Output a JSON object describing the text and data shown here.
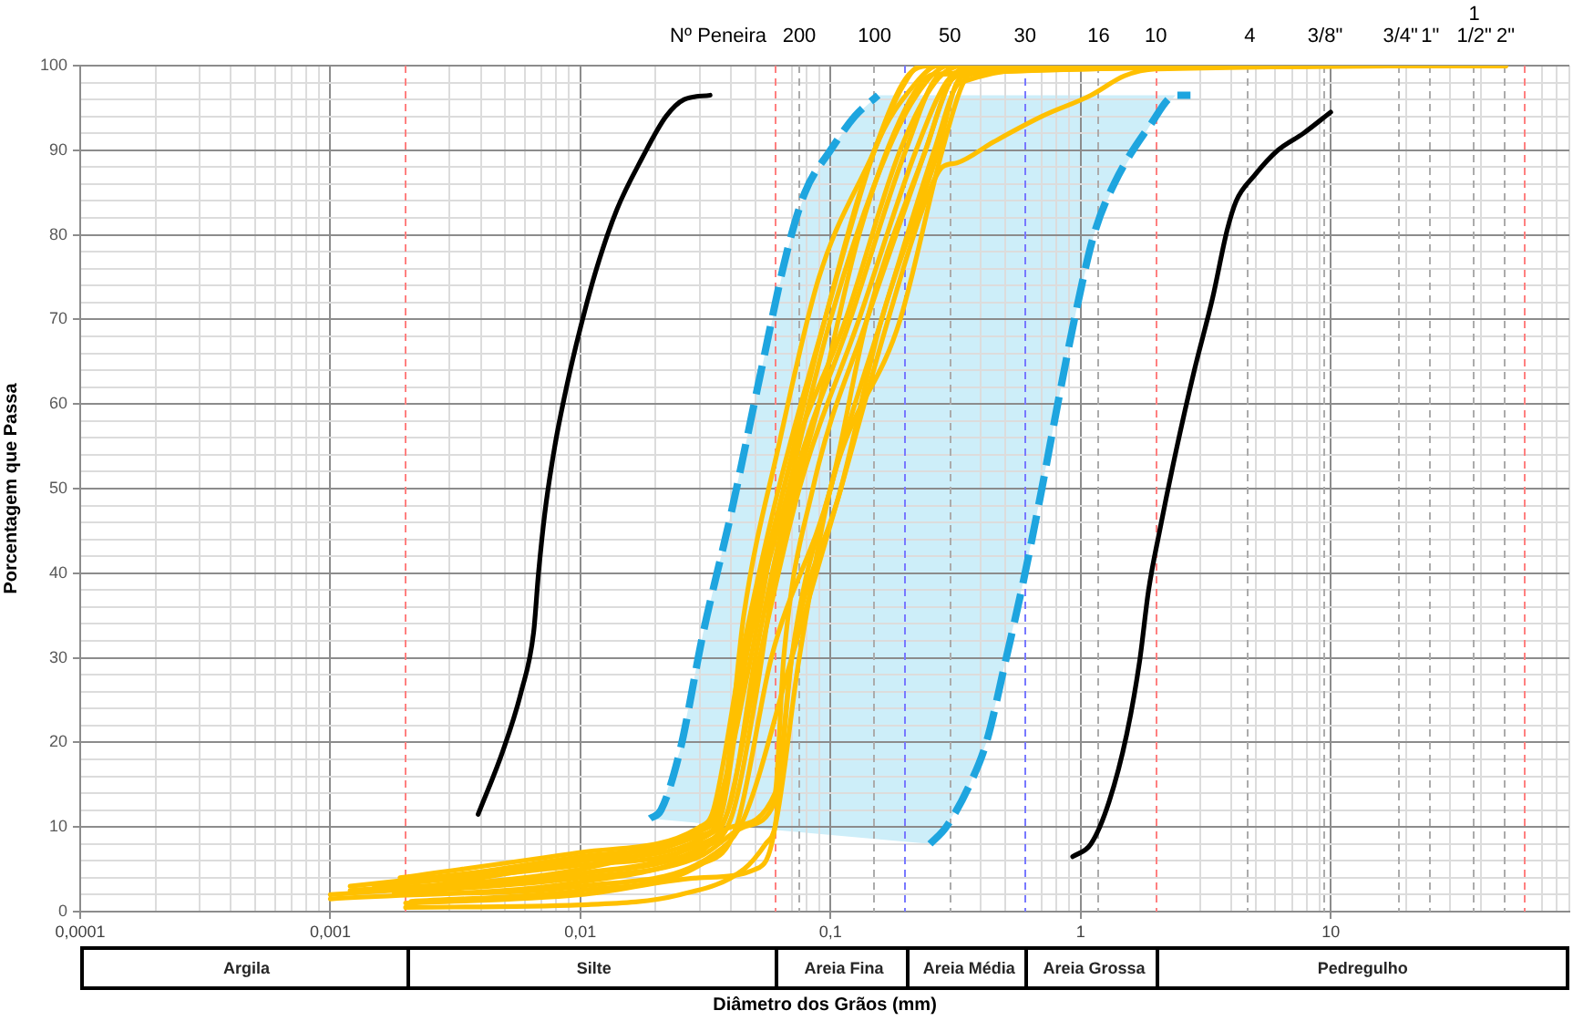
{
  "chart_data": {
    "type": "line",
    "xlabel": "Diâmetro dos Grãos (mm)",
    "ylabel": "Porcentagem que Passa",
    "log": "x",
    "grid": true,
    "xlim": [
      0.0001,
      90
    ],
    "ylim": [
      0,
      100
    ],
    "xticks": [
      {
        "value": 0.0001,
        "label": "0,0001"
      },
      {
        "value": 0.0002,
        "label": null
      },
      {
        "value": 0.0003,
        "label": null
      },
      {
        "value": 0.0004,
        "label": null
      },
      {
        "value": 0.0005,
        "label": null
      },
      {
        "value": 0.0006,
        "label": null
      },
      {
        "value": 0.0007,
        "label": null
      },
      {
        "value": 0.0008,
        "label": null
      },
      {
        "value": 0.0009,
        "label": null
      },
      {
        "value": 0.001,
        "label": "0,001"
      },
      {
        "value": 0.003,
        "label": null
      },
      {
        "value": 0.004,
        "label": null
      },
      {
        "value": 0.005,
        "label": null
      },
      {
        "value": 0.006,
        "label": null
      },
      {
        "value": 0.007,
        "label": null
      },
      {
        "value": 0.008,
        "label": null
      },
      {
        "value": 0.009,
        "label": null
      },
      {
        "value": 0.01,
        "label": "0,01"
      },
      {
        "value": 0.02,
        "label": null
      },
      {
        "value": 0.03,
        "label": null
      },
      {
        "value": 0.04,
        "label": null
      },
      {
        "value": 0.05,
        "label": null
      },
      {
        "value": 0.07,
        "label": null
      },
      {
        "value": 0.08,
        "label": null
      },
      {
        "value": 0.09,
        "label": null
      },
      {
        "value": 0.1,
        "label": "0,1"
      },
      {
        "value": 0.4,
        "label": null
      },
      {
        "value": 0.5,
        "label": null
      },
      {
        "value": 0.7,
        "label": null
      },
      {
        "value": 0.8,
        "label": null
      },
      {
        "value": 0.9,
        "label": null
      },
      1,
      {
        "value": 3,
        "label": null
      },
      {
        "value": 4,
        "label": null
      },
      {
        "value": 5,
        "label": null
      },
      {
        "value": 6,
        "label": null
      },
      {
        "value": 7,
        "label": null
      },
      {
        "value": 8,
        "label": null
      },
      {
        "value": 9,
        "label": null
      },
      10,
      {
        "value": 20,
        "label": null
      },
      {
        "value": 30,
        "label": null
      },
      {
        "value": 40,
        "label": null
      },
      {
        "value": 70,
        "label": null
      },
      {
        "value": 80,
        "label": null
      },
      {
        "value": 90,
        "label": null
      }
    ],
    "yticks": [
      0,
      {
        "value": 2,
        "label": null
      },
      {
        "value": 4,
        "label": null
      },
      {
        "value": 6,
        "label": null
      },
      {
        "value": 8,
        "label": null
      },
      10,
      {
        "value": 12,
        "label": null
      },
      {
        "value": 14,
        "label": null
      },
      {
        "value": 16,
        "label": null
      },
      {
        "value": 18,
        "label": null
      },
      20,
      {
        "value": 22,
        "label": null
      },
      {
        "value": 24,
        "label": null
      },
      {
        "value": 26,
        "label": null
      },
      {
        "value": 28,
        "label": null
      },
      30,
      {
        "value": 32,
        "label": null
      },
      {
        "value": 34,
        "label": null
      },
      {
        "value": 36,
        "label": null
      },
      {
        "value": 38,
        "label": null
      },
      40,
      {
        "value": 42,
        "label": null
      },
      {
        "value": 44,
        "label": null
      },
      {
        "value": 46,
        "label": null
      },
      {
        "value": 48,
        "label": null
      },
      50,
      {
        "value": 52,
        "label": null
      },
      {
        "value": 54,
        "label": null
      },
      {
        "value": 56,
        "label": null
      },
      {
        "value": 58,
        "label": null
      },
      60,
      {
        "value": 62,
        "label": null
      },
      {
        "value": 64,
        "label": null
      },
      {
        "value": 66,
        "label": null
      },
      {
        "value": 68,
        "label": null
      },
      70,
      {
        "value": 72,
        "label": null
      },
      {
        "value": 74,
        "label": null
      },
      {
        "value": 76,
        "label": null
      },
      {
        "value": 78,
        "label": null
      },
      80,
      {
        "value": 82,
        "label": null
      },
      {
        "value": 84,
        "label": null
      },
      {
        "value": 86,
        "label": null
      },
      {
        "value": 88,
        "label": null
      },
      90,
      {
        "value": 92,
        "label": null
      },
      {
        "value": 94,
        "label": null
      },
      {
        "value": 96,
        "label": null
      },
      {
        "value": 98,
        "label": null
      },
      100
    ],
    "ref_lines": [
      {
        "axis": "x",
        "value": 0.075,
        "color": "#ababab",
        "line_style": "dashed"
      },
      {
        "axis": "x",
        "value": 0.15,
        "color": "#ababab",
        "line_style": "dashed"
      },
      {
        "axis": "x",
        "value": 0.3,
        "color": "#ababab",
        "line_style": "dashed"
      },
      {
        "axis": "x",
        "value": 1.18,
        "color": "#ababab",
        "line_style": "dashed"
      },
      {
        "axis": "x",
        "value": 4.75,
        "color": "#ababab",
        "line_style": "dashed"
      },
      {
        "axis": "x",
        "value": 9.5,
        "color": "#ababab",
        "line_style": "dashed"
      },
      {
        "axis": "x",
        "value": 19,
        "color": "#ababab",
        "line_style": "dashed"
      },
      {
        "axis": "x",
        "value": 25,
        "color": "#ababab",
        "line_style": "dashed"
      },
      {
        "axis": "x",
        "value": 37.5,
        "color": "#ababab",
        "line_style": "dashed"
      },
      {
        "axis": "x",
        "value": 50,
        "color": "#ababab",
        "line_style": "dashed"
      },
      {
        "axis": "x",
        "value": 0.002,
        "color": "#ff8080",
        "line_style": "dashed"
      },
      {
        "axis": "x",
        "value": 0.06,
        "color": "#ff8080",
        "line_style": "dashed"
      },
      {
        "axis": "x",
        "value": 0.2,
        "color": "#7878ff",
        "line_style": "dashed"
      },
      {
        "axis": "x",
        "value": 0.6,
        "color": "#7878ff",
        "line_style": "dashed"
      },
      {
        "axis": "x",
        "value": 2,
        "color": "#ff8080",
        "line_style": "dashed"
      },
      {
        "axis": "x",
        "value": 60,
        "color": "#ff8080",
        "line_style": "dashed"
      }
    ],
    "annotations": [
      "Nº Peneira",
      "200",
      "100",
      "50",
      "30",
      "16",
      "10",
      "4",
      "3/8\"",
      "3/4\"",
      "1\"",
      "1 1/2\"",
      "2\"",
      "Argila",
      "Silte",
      "Areia Fina",
      "Areia Média",
      "Areia Grossa",
      "Pedregulho"
    ],
    "series": [
      {
        "color": "#ffc000",
        "x": [
          0.001,
          0.01,
          0.03,
          0.037,
          0.046,
          0.068,
          0.1,
          0.17,
          0.24,
          0.3,
          50
        ],
        "values": [
          2,
          4.5,
          8.5,
          12,
          30,
          50,
          70,
          90,
          98,
          100,
          100
        ]
      },
      {
        "color": "#ffc000",
        "x": [
          0.0012,
          0.01,
          0.032,
          0.04,
          0.05,
          0.07,
          0.12,
          0.2,
          0.28,
          50
        ],
        "values": [
          3,
          6,
          9,
          13,
          30,
          50,
          70,
          90,
          99,
          100
        ]
      },
      {
        "color": "#ffc000",
        "x": [
          0.002,
          0.01,
          0.03,
          0.05,
          0.06,
          0.07,
          0.1,
          0.16,
          0.26,
          0.33,
          1.2,
          50
        ],
        "values": [
          1,
          2,
          4,
          5,
          10,
          30,
          50,
          70,
          90,
          98,
          100,
          100
        ]
      },
      {
        "color": "#ffc000",
        "x": [
          0.002,
          0.01,
          0.035,
          0.045,
          0.07,
          0.11,
          0.17,
          0.24,
          0.28,
          0.32,
          0.45,
          0.7,
          1.1,
          1.5,
          2,
          50
        ],
        "values": [
          2,
          3,
          7,
          11,
          30,
          50,
          70,
          84,
          88,
          88.5,
          91,
          94,
          96.5,
          98.8,
          99.6,
          100
        ]
      },
      {
        "color": "#ffc000",
        "x": [
          0.0015,
          0.01,
          0.03,
          0.036,
          0.045,
          0.065,
          0.095,
          0.15,
          0.22,
          0.27,
          50
        ],
        "values": [
          2.5,
          5,
          9,
          11,
          30,
          50,
          70,
          90,
          98,
          100,
          100
        ]
      },
      {
        "color": "#ffc000",
        "x": [
          0.0022,
          0.01,
          0.03,
          0.035,
          0.048,
          0.065,
          0.115,
          0.19,
          0.27,
          0.35,
          50
        ],
        "values": [
          3.5,
          6.5,
          9.5,
          12,
          30,
          50,
          70,
          90,
          98.5,
          100,
          100
        ]
      },
      {
        "color": "#ffc000",
        "x": [
          0.002,
          0.01,
          0.025,
          0.045,
          0.055,
          0.06,
          0.075,
          0.1,
          0.19,
          0.28,
          0.34,
          0.4,
          50
        ],
        "values": [
          0.5,
          0.8,
          2,
          5,
          8,
          10,
          30,
          50,
          70,
          90,
          98,
          99.5,
          100
        ]
      },
      {
        "color": "#ffc000",
        "x": [
          0.001,
          0.01,
          0.03,
          0.04,
          0.06,
          0.065,
          0.085,
          0.14,
          0.24,
          0.3,
          0.36,
          50
        ],
        "values": [
          1.5,
          3.5,
          7,
          10,
          14,
          30,
          50,
          70,
          90,
          98,
          100,
          100
        ]
      },
      {
        "color": "#ffc000",
        "x": [
          0.0015,
          0.01,
          0.03,
          0.038,
          0.052,
          0.075,
          0.13,
          0.22,
          0.29,
          0.34,
          50
        ],
        "values": [
          3,
          5.5,
          8,
          11,
          30,
          50,
          70,
          90,
          98,
          99.5,
          100
        ]
      },
      {
        "color": "#ffc000",
        "x": [
          0.0019,
          0.01,
          0.03,
          0.034,
          0.044,
          0.062,
          0.095,
          0.15,
          0.2,
          0.25,
          50
        ],
        "values": [
          4,
          7,
          10,
          12,
          30,
          50,
          70,
          90,
          98.5,
          100,
          100
        ]
      },
      {
        "color": "#ffc000",
        "x": [
          0.0018,
          0.01,
          0.03,
          0.045,
          0.06,
          0.07,
          0.11,
          0.16,
          0.27,
          0.32,
          0.37,
          1,
          50
        ],
        "values": [
          2.2,
          4,
          6.5,
          10,
          13,
          30,
          50,
          70,
          90,
          98,
          99,
          100,
          100
        ]
      },
      {
        "color": "#ffc000",
        "x": [
          0.0012,
          0.01,
          0.03,
          0.04,
          0.05,
          0.06,
          0.09,
          0.13,
          0.2,
          0.26,
          50
        ],
        "values": [
          2.5,
          4.5,
          7.5,
          11,
          25,
          40,
          60,
          80,
          95,
          99,
          100
        ]
      },
      {
        "color": "#ffc000",
        "x": [
          0.0021,
          0.01,
          0.03,
          0.042,
          0.058,
          0.1,
          0.14,
          0.24,
          0.31,
          0.45,
          50
        ],
        "values": [
          1.2,
          2.5,
          5.5,
          10,
          30,
          50,
          70,
          90,
          98.5,
          99.5,
          100
        ]
      },
      {
        "color": "#ffc000",
        "x": [
          0.0025,
          0.01,
          0.03,
          0.037,
          0.045,
          0.062,
          0.09,
          0.15,
          0.19,
          0.23,
          50
        ],
        "values": [
          3,
          6,
          9.5,
          13,
          35,
          55,
          75,
          90,
          97,
          100,
          100
        ]
      },
      {
        "color": "#000000",
        "x": [
          0.0039,
          0.0049,
          0.0058,
          0.0065,
          0.0068,
          0.0072,
          0.0079,
          0.0088,
          0.01,
          0.0116,
          0.014,
          0.0176,
          0.022,
          0.026,
          0.033
        ],
        "values": [
          11.5,
          19,
          26,
          33,
          40,
          47,
          55,
          62,
          69,
          76,
          83,
          89,
          94,
          96,
          96.5
        ]
      },
      {
        "color": "#000000",
        "x": [
          0.93,
          1.1,
          1.3,
          1.53,
          1.72,
          1.87,
          2.07,
          2.41,
          2.85,
          3.37,
          3.85,
          4.19,
          4.95,
          6.15,
          7.78,
          10
        ],
        "values": [
          6.5,
          8,
          13,
          21,
          29.5,
          38,
          45,
          54.5,
          64,
          72.5,
          80.5,
          84,
          87,
          90,
          92,
          94.5
        ]
      },
      {
        "color": "#1ea5df",
        "line_style": "dashed",
        "x": [
          0.019,
          0.021,
          0.025,
          0.031,
          0.04,
          0.052,
          0.067,
          0.079,
          0.1,
          0.125,
          0.155
        ],
        "values": [
          11,
          12,
          19,
          33,
          47,
          63,
          78,
          85,
          90,
          94,
          96.5
        ]
      },
      {
        "color": "#1ea5df",
        "line_style": "dashed",
        "x": [
          0.25,
          0.29,
          0.36,
          0.42,
          0.5,
          0.59,
          0.7,
          0.81,
          0.96,
          1.13,
          1.36,
          1.9,
          2.4,
          2.75
        ],
        "values": [
          8,
          10,
          15,
          20,
          29.5,
          39,
          50,
          60,
          71,
          80,
          86,
          93,
          96.5,
          96.5
        ]
      }
    ]
  }
}
